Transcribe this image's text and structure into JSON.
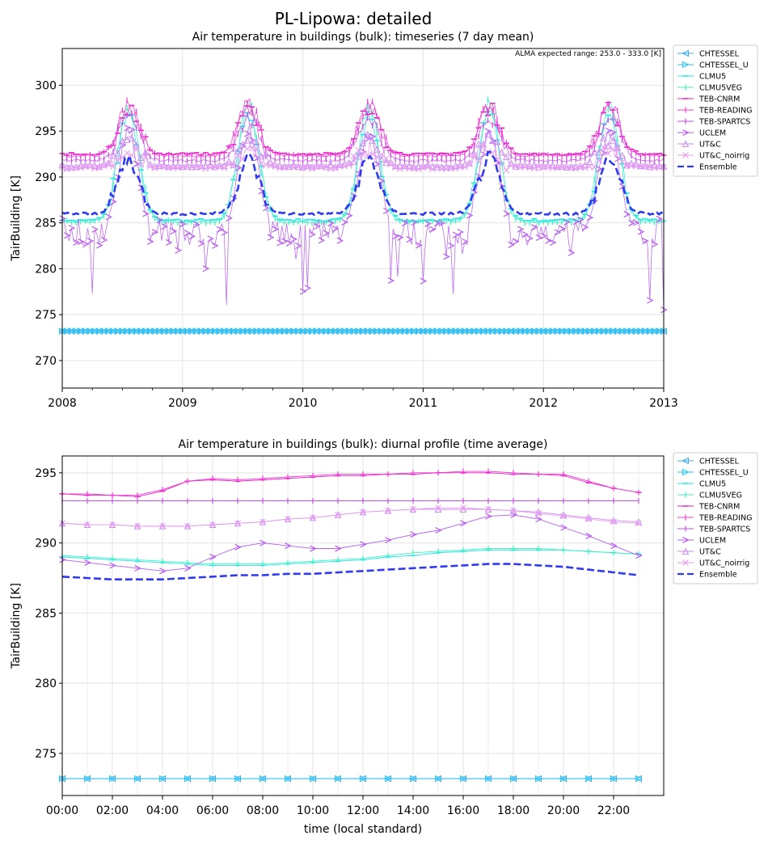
{
  "figure": {
    "suptitle": "PL-Lipowa: detailed"
  },
  "legend_entries": [
    {
      "name": "CHTESSEL",
      "color": "#3aa8f0",
      "marker": "tri-left",
      "dash": ""
    },
    {
      "name": "CHTESSEL_U",
      "color": "#22c6f2",
      "marker": "tri-right",
      "dash": ""
    },
    {
      "name": "CLMU5",
      "color": "#1fe4e8",
      "marker": "hline",
      "dash": ""
    },
    {
      "name": "CLMU5VEG",
      "color": "#3cf2c0",
      "marker": "vline",
      "dash": ""
    },
    {
      "name": "TEB-CNRM",
      "color": "#e81fc0",
      "marker": "hline",
      "dash": ""
    },
    {
      "name": "TEB-READING",
      "color": "#f03cd8",
      "marker": "vline",
      "dash": ""
    },
    {
      "name": "TEB-SPARTCS",
      "color": "#c84ee8",
      "marker": "vline",
      "dash": ""
    },
    {
      "name": "UCLEM",
      "color": "#b65cf0",
      "marker": "chev",
      "dash": ""
    },
    {
      "name": "UT&C",
      "color": "#cc8cf2",
      "marker": "tri-up",
      "dash": ""
    },
    {
      "name": "UT&C_noirrig",
      "color": "#e89af2",
      "marker": "x",
      "dash": ""
    },
    {
      "name": "Ensemble",
      "color": "#2f3af0",
      "marker": "none",
      "dash": "8,4"
    }
  ],
  "chart_data": [
    {
      "type": "line",
      "title": "Air temperature in buildings (bulk): timeseries (7 day mean)",
      "annotation": "ALMA expected range: 253.0 - 333.0 [K]",
      "xlabel": "",
      "ylabel": "TairBuilding [K]",
      "xlim": [
        2008,
        2013
      ],
      "ylim": [
        267,
        304
      ],
      "x_ticks": [
        "2008",
        "2009",
        "2010",
        "2011",
        "2012",
        "2013"
      ],
      "y_ticks": [
        270,
        275,
        280,
        285,
        290,
        295,
        300
      ],
      "grid": true,
      "legend": "outside-right",
      "series": [
        {
          "name": "CHTESSEL",
          "flat": 273.2
        },
        {
          "name": "CHTESSEL_U",
          "flat": 273.2
        },
        {
          "name": "CLMU5",
          "base": 285.3,
          "peak": 297.0
        },
        {
          "name": "CLMU5VEG",
          "base": 285.1,
          "peak": 297.8
        },
        {
          "name": "TEB-CNRM",
          "base": 292.5,
          "peak": 297.5
        },
        {
          "name": "TEB-READING",
          "base": 292.3,
          "peak": 298.0
        },
        {
          "name": "TEB-SPARTCS",
          "base": 291.8,
          "peak": 296.5
        },
        {
          "name": "UCLEM",
          "base": 284.0,
          "peak": 295.0
        },
        {
          "name": "UT&C",
          "base": 291.2,
          "peak": 294.0
        },
        {
          "name": "UT&C_noirrig",
          "base": 291.0,
          "peak": 293.0
        },
        {
          "name": "Ensemble",
          "base": 286.0,
          "peak": 292.0
        }
      ]
    },
    {
      "type": "line",
      "title": "Air temperature in buildings (bulk): diurnal profile (time average)",
      "xlabel": "time (local standard)",
      "ylabel": "TairBuilding [K]",
      "xlim": [
        0,
        24
      ],
      "ylim": [
        272,
        296.2
      ],
      "x_ticks": [
        "00:00",
        "02:00",
        "04:00",
        "06:00",
        "08:00",
        "10:00",
        "12:00",
        "14:00",
        "16:00",
        "18:00",
        "20:00",
        "22:00"
      ],
      "y_ticks": [
        275,
        280,
        285,
        290,
        295
      ],
      "grid": true,
      "legend": "outside-right",
      "x": [
        0,
        1,
        2,
        3,
        4,
        5,
        6,
        7,
        8,
        9,
        10,
        11,
        12,
        13,
        14,
        15,
        16,
        17,
        18,
        19,
        20,
        21,
        22,
        23
      ],
      "series": [
        {
          "name": "CHTESSEL",
          "values": [
            273.2,
            273.2,
            273.2,
            273.2,
            273.2,
            273.2,
            273.2,
            273.2,
            273.2,
            273.2,
            273.2,
            273.2,
            273.2,
            273.2,
            273.2,
            273.2,
            273.2,
            273.2,
            273.2,
            273.2,
            273.2,
            273.2,
            273.2,
            273.2
          ]
        },
        {
          "name": "CHTESSEL_U",
          "values": [
            273.2,
            273.2,
            273.2,
            273.2,
            273.2,
            273.2,
            273.2,
            273.2,
            273.2,
            273.2,
            273.2,
            273.2,
            273.2,
            273.2,
            273.2,
            273.2,
            273.2,
            273.2,
            273.2,
            273.2,
            273.2,
            273.2,
            273.2,
            273.2
          ]
        },
        {
          "name": "CLMU5",
          "values": [
            289.0,
            288.9,
            288.8,
            288.7,
            288.6,
            288.5,
            288.4,
            288.4,
            288.4,
            288.5,
            288.6,
            288.7,
            288.8,
            289.0,
            289.1,
            289.3,
            289.4,
            289.5,
            289.5,
            289.5,
            289.5,
            289.4,
            289.3,
            289.2
          ]
        },
        {
          "name": "CLMU5VEG",
          "values": [
            289.1,
            289.0,
            288.9,
            288.8,
            288.7,
            288.6,
            288.5,
            288.5,
            288.5,
            288.6,
            288.7,
            288.8,
            288.9,
            289.1,
            289.3,
            289.4,
            289.5,
            289.6,
            289.6,
            289.6,
            289.5,
            289.4,
            289.3,
            289.2
          ]
        },
        {
          "name": "TEB-CNRM",
          "values": [
            293.5,
            293.4,
            293.4,
            293.3,
            293.7,
            294.4,
            294.5,
            294.4,
            294.5,
            294.6,
            294.7,
            294.8,
            294.8,
            294.9,
            294.9,
            295.0,
            295.0,
            295.0,
            294.9,
            294.9,
            294.8,
            294.3,
            293.9,
            293.6
          ]
        },
        {
          "name": "TEB-READING",
          "values": [
            293.5,
            293.5,
            293.4,
            293.4,
            293.8,
            294.4,
            294.6,
            294.5,
            294.6,
            294.7,
            294.8,
            294.9,
            294.9,
            294.9,
            295.0,
            295.0,
            295.1,
            295.1,
            295.0,
            294.9,
            294.9,
            294.4,
            293.9,
            293.6
          ]
        },
        {
          "name": "TEB-SPARTCS",
          "values": [
            293.0,
            293.0,
            293.0,
            293.0,
            293.0,
            293.0,
            293.0,
            293.0,
            293.0,
            293.0,
            293.0,
            293.0,
            293.0,
            293.0,
            293.0,
            293.0,
            293.0,
            293.0,
            293.0,
            293.0,
            293.0,
            293.0,
            293.0,
            293.0
          ]
        },
        {
          "name": "UCLEM",
          "values": [
            288.8,
            288.6,
            288.4,
            288.2,
            288.0,
            288.2,
            289.0,
            289.7,
            290.0,
            289.8,
            289.6,
            289.6,
            289.9,
            290.2,
            290.6,
            290.9,
            291.4,
            291.9,
            292.0,
            291.7,
            291.1,
            290.5,
            289.8,
            289.1
          ]
        },
        {
          "name": "UT&C",
          "values": [
            291.4,
            291.3,
            291.3,
            291.2,
            291.2,
            291.2,
            291.3,
            291.4,
            291.5,
            291.7,
            291.8,
            292.0,
            292.2,
            292.3,
            292.4,
            292.4,
            292.4,
            292.4,
            292.3,
            292.2,
            292.0,
            291.8,
            291.6,
            291.5
          ]
        },
        {
          "name": "UT&C_noirrig",
          "values": [
            291.4,
            291.3,
            291.3,
            291.2,
            291.2,
            291.2,
            291.3,
            291.4,
            291.5,
            291.7,
            291.8,
            292.0,
            292.2,
            292.3,
            292.4,
            292.5,
            292.5,
            292.4,
            292.3,
            292.1,
            291.9,
            291.7,
            291.5,
            291.4
          ]
        },
        {
          "name": "Ensemble",
          "values": [
            287.6,
            287.5,
            287.4,
            287.4,
            287.4,
            287.5,
            287.6,
            287.7,
            287.7,
            287.8,
            287.8,
            287.9,
            288.0,
            288.1,
            288.2,
            288.3,
            288.4,
            288.5,
            288.5,
            288.4,
            288.3,
            288.1,
            287.9,
            287.7
          ]
        }
      ]
    }
  ]
}
